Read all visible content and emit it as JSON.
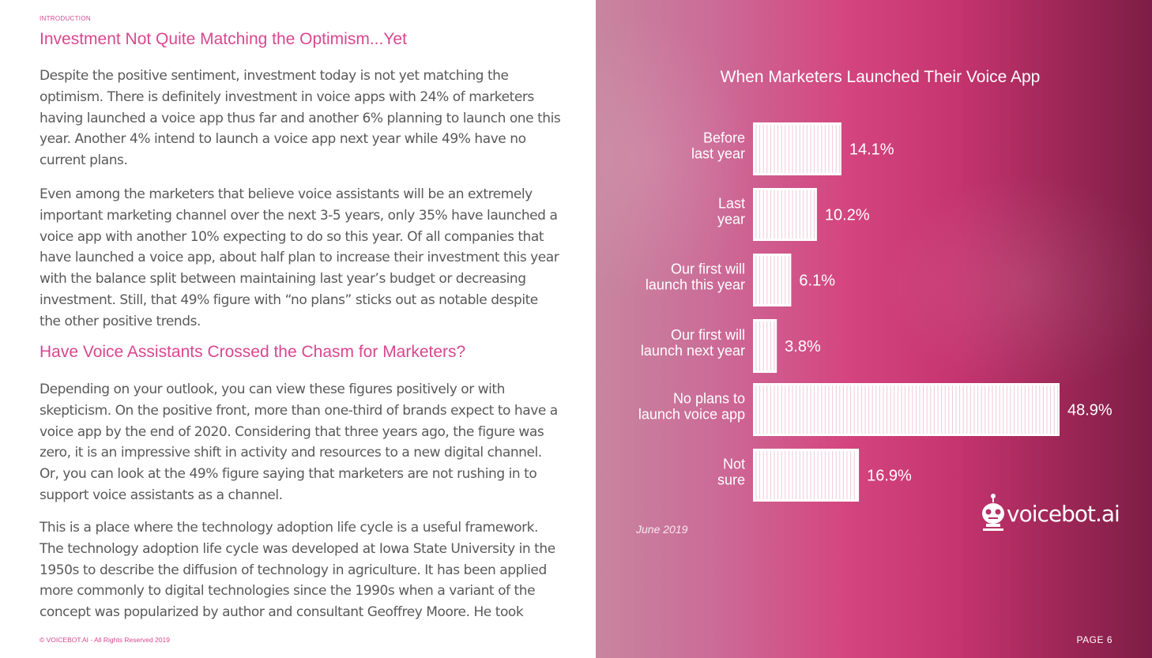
{
  "section_label": "INTRODUCTION",
  "heading1": "Investment Not Quite Matching the Optimism...Yet",
  "para1": "Despite the positive sentiment, investment today is not yet matching the optimism. There is definitely investment in voice apps with 24% of marketers having launched a voice app thus far and another 6% planning to launch one this year. Another 4% intend to launch a voice app next year while 49% have no current plans.",
  "para2": "Even among the marketers that believe voice assistants will be an extremely important marketing channel over the next 3-5 years, only 35% have launched a voice app with another 10% expecting to do so this year. Of all companies that have launched a voice app, about half plan to increase their investment this year with the balance split between maintaining last year’s budget or decreasing investment. Still, that 49% figure with “no plans” sticks out as notable despite the other positive trends.",
  "heading2": "Have Voice Assistants Crossed the Chasm for Marketers?",
  "para3": "Depending on your outlook, you can view these figures positively or with skepticism. On the positive front, more than one-third of brands expect to have a voice app by the end of 2020. Considering that three years ago, the figure was zero, it is an impressive shift in activity and resources to a new digital channel. Or, you can look at the 49% figure saying that marketers are not rushing in to support voice assistants as a channel.",
  "para4": "This is a place where the technology adoption life cycle is a useful framework. The technology adoption life cycle was developed at Iowa State University in the 1950s to describe the diffusion of technology in agriculture. It has been applied more commonly to digital technologies since the 1990s when a variant of the concept was popularized by author and consultant Geoffrey Moore. He took",
  "footer_copyright": "© VOICEBOT.AI - All Rights Reserved 2019",
  "page_number": "PAGE 6",
  "logo": {
    "text": "voicebot.ai",
    "icon": "robot-head-icon"
  },
  "colors": {
    "accent": "#d9478f",
    "body_text": "#595959",
    "bar_fill": "#ffffff"
  },
  "chart_data": {
    "type": "bar",
    "orientation": "horizontal",
    "title": "When Marketers Launched Their Voice App",
    "source_note": "June 2019",
    "categories": [
      [
        "Before",
        "last year"
      ],
      [
        "Last",
        "year"
      ],
      [
        "Our first will",
        "launch this year"
      ],
      [
        "Our first will",
        "launch next year"
      ],
      [
        "No plans to",
        "launch voice app"
      ],
      [
        "Not",
        "sure"
      ]
    ],
    "values": [
      14.1,
      10.2,
      6.1,
      3.8,
      48.9,
      16.9
    ],
    "value_labels": [
      "14.1%",
      "10.2%",
      "6.1%",
      "3.8%",
      "48.9%",
      "16.9%"
    ],
    "unit": "%",
    "xlim": [
      0,
      48.9
    ],
    "grid": false,
    "legend": "none"
  }
}
